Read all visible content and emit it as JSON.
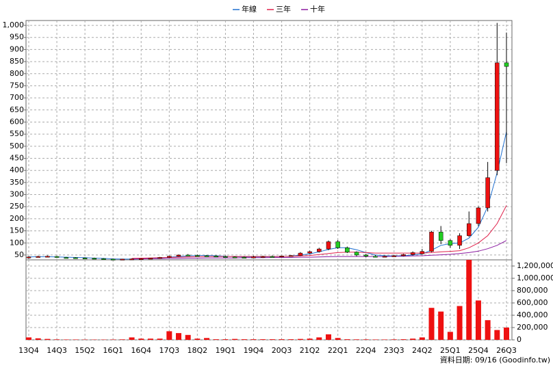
{
  "chart_data": {
    "type": "candlestick",
    "categories": [
      "13Q4",
      null,
      null,
      "14Q3",
      null,
      null,
      "15Q2",
      null,
      null,
      "16Q1",
      null,
      null,
      "16Q4",
      null,
      null,
      "17Q3",
      null,
      null,
      "18Q2",
      null,
      null,
      "19Q1",
      null,
      null,
      "19Q4",
      null,
      null,
      "20Q3",
      null,
      null,
      "21Q2",
      null,
      null,
      "22Q1",
      null,
      null,
      "22Q4",
      null,
      null,
      "23Q3",
      null,
      null,
      "24Q2",
      null,
      null,
      "25Q1",
      null,
      null,
      "25Q4",
      null,
      null,
      "26Q3"
    ],
    "open": [
      38,
      43,
      44,
      44,
      40,
      39,
      38,
      37,
      35,
      33,
      32,
      33,
      34,
      35,
      37,
      40,
      45,
      50,
      48,
      47,
      46,
      44,
      42,
      41,
      40,
      42,
      44,
      43,
      46,
      48,
      58,
      64,
      75,
      105,
      80,
      62,
      50,
      45,
      44,
      45,
      47,
      52,
      55,
      65,
      145,
      110,
      90,
      130,
      180,
      245,
      400,
      845
    ],
    "high": [
      45,
      47,
      48,
      46,
      42,
      41,
      40,
      39,
      37,
      35,
      34,
      35,
      37,
      38,
      42,
      47,
      52,
      54,
      52,
      50,
      49,
      47,
      45,
      44,
      46,
      47,
      48,
      47,
      50,
      62,
      68,
      80,
      110,
      112,
      85,
      65,
      55,
      50,
      48,
      50,
      55,
      65,
      75,
      150,
      170,
      115,
      140,
      230,
      250,
      435,
      1010,
      970
    ],
    "low": [
      35,
      40,
      42,
      38,
      37,
      36,
      35,
      34,
      31,
      30,
      30,
      31,
      32,
      33,
      35,
      38,
      43,
      46,
      44,
      43,
      42,
      40,
      39,
      38,
      37,
      38,
      40,
      40,
      43,
      46,
      55,
      60,
      70,
      75,
      58,
      45,
      40,
      40,
      40,
      42,
      45,
      48,
      52,
      62,
      95,
      80,
      75,
      125,
      170,
      230,
      380,
      430
    ],
    "close": [
      42,
      44,
      45,
      40,
      39,
      38,
      37,
      35,
      33,
      32,
      33,
      34,
      35,
      37,
      40,
      45,
      50,
      48,
      47,
      46,
      44,
      42,
      41,
      40,
      42,
      44,
      43,
      46,
      48,
      58,
      64,
      75,
      105,
      80,
      62,
      50,
      45,
      44,
      45,
      47,
      52,
      60,
      65,
      145,
      110,
      90,
      130,
      180,
      245,
      370,
      845,
      830
    ],
    "up_color": "#ee1111",
    "down_color": "#22cc22",
    "series": [
      {
        "name": "年線",
        "color": "#1f6fd0",
        "values": [
          42,
          43,
          43,
          42,
          41,
          40,
          39,
          37,
          36,
          34,
          33,
          33,
          34,
          36,
          38,
          41,
          44,
          46,
          48,
          48,
          47,
          45,
          43,
          42,
          42,
          42,
          43,
          44,
          45,
          50,
          55,
          63,
          73,
          80,
          80,
          72,
          60,
          50,
          47,
          46,
          47,
          50,
          55,
          70,
          90,
          97,
          100,
          120,
          165,
          250,
          390,
          560
        ]
      },
      {
        "name": "三年",
        "color": "#e0204a",
        "values": [
          null,
          null,
          null,
          null,
          null,
          null,
          null,
          null,
          null,
          null,
          null,
          36,
          37,
          38,
          39,
          40,
          41,
          42,
          43,
          44,
          44,
          44,
          44,
          44,
          44,
          44,
          44,
          44,
          45,
          46,
          48,
          52,
          56,
          60,
          62,
          62,
          60,
          58,
          58,
          58,
          58,
          58,
          58,
          60,
          63,
          65,
          68,
          80,
          100,
          130,
          180,
          255
        ]
      },
      {
        "name": "十年",
        "color": "#8a1aa0",
        "values": [
          null,
          null,
          null,
          null,
          null,
          null,
          null,
          null,
          null,
          null,
          null,
          34,
          34,
          35,
          35,
          36,
          36,
          37,
          37,
          38,
          38,
          38,
          38,
          39,
          39,
          39,
          40,
          40,
          40,
          41,
          41,
          42,
          43,
          44,
          44,
          44,
          44,
          44,
          44,
          45,
          45,
          46,
          47,
          49,
          51,
          53,
          56,
          60,
          66,
          76,
          90,
          110
        ]
      }
    ],
    "volume": [
      40000,
      25000,
      15000,
      8000,
      6000,
      6000,
      5000,
      5000,
      5000,
      6000,
      8000,
      40000,
      20000,
      20000,
      20000,
      140000,
      110000,
      80000,
      20000,
      30000,
      10000,
      10000,
      15000,
      10000,
      10000,
      10000,
      10000,
      10000,
      10000,
      15000,
      20000,
      40000,
      90000,
      30000,
      10000,
      8000,
      8000,
      6000,
      6000,
      8000,
      10000,
      20000,
      40000,
      520000,
      460000,
      130000,
      550000,
      1330000,
      640000,
      320000,
      160000,
      200000
    ],
    "volume_color": "#ee1111",
    "ylim": [
      30,
      1020
    ],
    "yticks": [
      50,
      100,
      150,
      200,
      250,
      300,
      350,
      400,
      450,
      500,
      550,
      600,
      650,
      700,
      750,
      800,
      850,
      900,
      950,
      {
        "value": 1000,
        "label": "1,000"
      }
    ],
    "y2lim": [
      0,
      1300000
    ],
    "y2ticks": [
      0,
      {
        "value": 200000,
        "label": "200,000"
      },
      {
        "value": 400000,
        "label": "400,000"
      },
      {
        "value": 600000,
        "label": "600,000"
      },
      {
        "value": 800000,
        "label": "800,000"
      },
      {
        "value": 1000000,
        "label": "1,000,000"
      },
      {
        "value": 1200000,
        "label": "1,200,000"
      }
    ],
    "grid": true,
    "footer": "資料日期: 09/16 (Goodinfo.tw)"
  }
}
